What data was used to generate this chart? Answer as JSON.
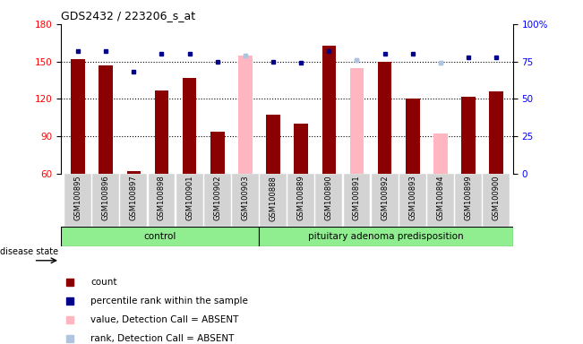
{
  "title": "GDS2432 / 223206_s_at",
  "samples": [
    "GSM100895",
    "GSM100896",
    "GSM100897",
    "GSM100898",
    "GSM100901",
    "GSM100902",
    "GSM100903",
    "GSM100888",
    "GSM100889",
    "GSM100890",
    "GSM100891",
    "GSM100892",
    "GSM100893",
    "GSM100894",
    "GSM100899",
    "GSM100900"
  ],
  "values": [
    152,
    147,
    62,
    127,
    137,
    94,
    155,
    107,
    100,
    163,
    145,
    150,
    120,
    92,
    122,
    126
  ],
  "absent": [
    false,
    false,
    false,
    false,
    false,
    false,
    true,
    false,
    false,
    false,
    true,
    false,
    false,
    true,
    false,
    false
  ],
  "percentile_ranks": [
    82,
    82,
    68,
    80,
    80,
    75,
    79,
    75,
    74,
    82,
    76,
    80,
    80,
    74,
    78,
    78
  ],
  "absent_ranks": [
    null,
    null,
    null,
    null,
    null,
    null,
    79,
    null,
    null,
    null,
    76,
    null,
    null,
    74,
    null,
    null
  ],
  "ylim_left": [
    60,
    180
  ],
  "ylim_right": [
    0,
    100
  ],
  "yticks_left": [
    60,
    90,
    120,
    150,
    180
  ],
  "yticks_right": [
    0,
    25,
    50,
    75,
    100
  ],
  "bar_color_present": "#8B0000",
  "bar_color_absent": "#FFB6C1",
  "dot_color_present": "#00008B",
  "dot_color_absent": "#B0C4DE",
  "control_bg": "#90EE90",
  "adenoma_bg": "#90EE90",
  "label_bg": "#D3D3D3",
  "group_label_control": "control",
  "group_label_adenoma": "pituitary adenoma predisposition",
  "disease_state_label": "disease state",
  "legend_items": [
    "count",
    "percentile rank within the sample",
    "value, Detection Call = ABSENT",
    "rank, Detection Call = ABSENT"
  ],
  "legend_colors": [
    "#8B0000",
    "#00008B",
    "#FFB6C1",
    "#B0C4DE"
  ],
  "n_control": 7,
  "n_adenoma": 9,
  "right_axis_ticks_label": [
    "0",
    "25",
    "50",
    "75",
    "100%"
  ],
  "dotted_gridlines": [
    90,
    120,
    150
  ],
  "bar_width": 0.5
}
